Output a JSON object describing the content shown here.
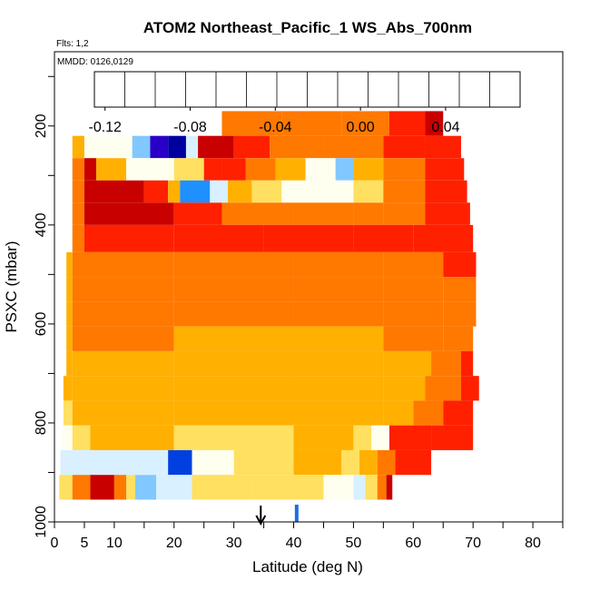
{
  "chart_data": {
    "type": "heatmap",
    "title": "ATOM2 Northeast_Pacific_1 WS_Abs_700nm",
    "flights_label": "Flts: 1,2",
    "date_label": "MMDD: 0126,0129",
    "xlabel": "Latitude (deg N)",
    "ylabel": "PSXC (mbar)",
    "xlim": [
      0,
      85
    ],
    "ylim": [
      1000,
      50
    ],
    "x_ticks": [
      "0",
      "5",
      "10",
      "20",
      "30",
      "40",
      "50",
      "60",
      "70",
      "80"
    ],
    "x_tick_values": [
      0,
      5,
      10,
      20,
      30,
      40,
      50,
      60,
      70,
      80
    ],
    "y_ticks": [
      "200",
      "400",
      "600",
      "800",
      "1000"
    ],
    "y_tick_values": [
      200,
      400,
      600,
      800,
      1000
    ],
    "colorbar": {
      "range": [
        -0.125,
        0.075
      ],
      "ticks": [
        "-0.12",
        "-0.08",
        "-0.04",
        "0.00",
        "0.04"
      ],
      "tick_values": [
        -0.12,
        -0.08,
        -0.04,
        0.0,
        0.04
      ],
      "colors": [
        "#8b20e0",
        "#2a00c8",
        "#0000a0",
        "#0040e0",
        "#1e90ff",
        "#80c8ff",
        "#d8f0ff",
        "#fffff0",
        "#ffe060",
        "#ffb000",
        "#ff7800",
        "#ff2000",
        "#c80000",
        "#800000"
      ]
    },
    "rows": [
      {
        "p_top": 170,
        "p_bot": 220,
        "x_start": 28,
        "x_end": 65,
        "segments": [
          [
            28,
            0.018
          ],
          [
            38,
            0.022
          ],
          [
            48,
            0.028
          ],
          [
            56,
            0.036
          ],
          [
            62,
            0.05
          ]
        ]
      },
      {
        "p_top": 220,
        "p_bot": 265,
        "x_start": 3,
        "x_end": 68,
        "segments": [
          [
            3,
            0.012
          ],
          [
            5,
            -0.018
          ],
          [
            13,
            -0.04
          ],
          [
            16,
            -0.11
          ],
          [
            19,
            -0.09
          ],
          [
            22,
            -0.03
          ],
          [
            24,
            0.06
          ],
          [
            30,
            0.04
          ],
          [
            36,
            0.025
          ],
          [
            45,
            0.03
          ],
          [
            55,
            0.035
          ],
          [
            62,
            0.045
          ]
        ]
      },
      {
        "p_top": 265,
        "p_bot": 310,
        "x_start": 3,
        "x_end": 68.5,
        "segments": [
          [
            3,
            0.03
          ],
          [
            5,
            0.05
          ],
          [
            7,
            0.015
          ],
          [
            12,
            -0.02
          ],
          [
            20,
            0.0
          ],
          [
            25,
            0.035
          ],
          [
            28,
            0.045
          ],
          [
            32,
            0.03
          ],
          [
            37,
            0.005
          ],
          [
            42,
            -0.015
          ],
          [
            47,
            -0.05
          ],
          [
            50,
            0.012
          ],
          [
            55,
            0.03
          ],
          [
            62,
            0.035
          ]
        ]
      },
      {
        "p_top": 310,
        "p_bot": 355,
        "x_start": 3,
        "x_end": 69,
        "segments": [
          [
            3,
            0.028
          ],
          [
            5,
            0.055
          ],
          [
            15,
            0.04
          ],
          [
            19,
            0.005
          ],
          [
            21,
            -0.065
          ],
          [
            26,
            -0.03
          ],
          [
            29,
            0.01
          ],
          [
            33,
            0.0
          ],
          [
            38,
            -0.02
          ],
          [
            50,
            -0.01
          ],
          [
            55,
            0.02
          ],
          [
            62,
            0.035
          ]
        ]
      },
      {
        "p_top": 355,
        "p_bot": 400,
        "x_start": 3,
        "x_end": 69.5,
        "segments": [
          [
            3,
            0.028
          ],
          [
            5,
            0.055
          ],
          [
            20,
            0.04
          ],
          [
            28,
            0.03
          ],
          [
            40,
            0.027
          ],
          [
            50,
            0.026
          ],
          [
            55,
            0.03
          ],
          [
            62,
            0.035
          ]
        ]
      },
      {
        "p_top": 400,
        "p_bot": 455,
        "x_start": 3,
        "x_end": 70,
        "segments": [
          [
            3,
            0.025
          ],
          [
            5,
            0.045
          ],
          [
            20,
            0.04
          ],
          [
            35,
            0.035
          ],
          [
            50,
            0.036
          ],
          [
            60,
            0.038
          ]
        ]
      },
      {
        "p_top": 455,
        "p_bot": 505,
        "x_start": 2,
        "x_end": 70.5,
        "segments": [
          [
            2,
            0.012
          ],
          [
            3,
            0.03
          ],
          [
            20,
            0.032
          ],
          [
            40,
            0.03
          ],
          [
            55,
            0.032
          ],
          [
            65,
            0.035
          ]
        ]
      },
      {
        "p_top": 505,
        "p_bot": 555,
        "x_start": 2,
        "x_end": 70.5,
        "segments": [
          [
            2,
            0.015
          ],
          [
            3,
            0.028
          ],
          [
            20,
            0.025
          ],
          [
            40,
            0.024
          ],
          [
            55,
            0.027
          ],
          [
            65,
            0.03
          ]
        ]
      },
      {
        "p_top": 555,
        "p_bot": 605,
        "x_start": 2,
        "x_end": 70.5,
        "segments": [
          [
            2,
            0.012
          ],
          [
            3,
            0.022
          ],
          [
            20,
            0.018
          ],
          [
            40,
            0.02
          ],
          [
            55,
            0.024
          ],
          [
            65,
            0.03
          ]
        ]
      },
      {
        "p_top": 605,
        "p_bot": 655,
        "x_start": 2,
        "x_end": 70,
        "segments": [
          [
            2,
            0.012
          ],
          [
            3,
            0.02
          ],
          [
            20,
            0.015
          ],
          [
            40,
            0.016
          ],
          [
            55,
            0.02
          ],
          [
            65,
            0.03
          ]
        ]
      },
      {
        "p_top": 655,
        "p_bot": 705,
        "x_start": 2,
        "x_end": 70,
        "segments": [
          [
            2,
            0.008
          ],
          [
            3,
            0.014
          ],
          [
            20,
            0.012
          ],
          [
            40,
            0.013
          ],
          [
            55,
            0.017
          ],
          [
            63,
            0.025
          ],
          [
            68,
            0.035
          ]
        ]
      },
      {
        "p_top": 705,
        "p_bot": 755,
        "x_start": 1.5,
        "x_end": 71,
        "segments": [
          [
            1.5,
            0.006
          ],
          [
            3,
            0.01
          ],
          [
            20,
            0.008
          ],
          [
            40,
            0.009
          ],
          [
            55,
            0.014
          ],
          [
            62,
            0.025
          ],
          [
            68,
            0.045
          ]
        ]
      },
      {
        "p_top": 755,
        "p_bot": 805,
        "x_start": 1.5,
        "x_end": 70,
        "segments": [
          [
            1.5,
            0.003
          ],
          [
            3,
            0.007
          ],
          [
            20,
            0.005
          ],
          [
            40,
            0.006
          ],
          [
            55,
            0.01
          ],
          [
            60,
            0.025
          ],
          [
            65,
            0.038
          ]
        ]
      },
      {
        "p_top": 805,
        "p_bot": 855,
        "x_start": 1.2,
        "x_end": 70,
        "segments": [
          [
            1.2,
            -0.02
          ],
          [
            3,
            0.0
          ],
          [
            6,
            0.004
          ],
          [
            20,
            0.003
          ],
          [
            40,
            0.004
          ],
          [
            50,
            0.0
          ],
          [
            53,
            -0.02
          ],
          [
            56,
            0.035
          ],
          [
            63,
            0.045
          ]
        ]
      },
      {
        "p_top": 855,
        "p_bot": 905,
        "x_start": 1,
        "x_end": 63,
        "segments": [
          [
            1,
            -0.035
          ],
          [
            5,
            -0.03
          ],
          [
            15,
            -0.028
          ],
          [
            19,
            -0.07
          ],
          [
            23,
            -0.02
          ],
          [
            30,
            0.003
          ],
          [
            40,
            0.004
          ],
          [
            48,
            0.0
          ],
          [
            51,
            0.012
          ],
          [
            54,
            0.025
          ],
          [
            57,
            0.035
          ]
        ]
      },
      {
        "p_top": 905,
        "p_bot": 955,
        "x_start": 0.8,
        "x_end": 56.5,
        "segments": [
          [
            0.8,
            0.0
          ],
          [
            3,
            0.03
          ],
          [
            6,
            0.06
          ],
          [
            10,
            0.02
          ],
          [
            12,
            -0.01
          ],
          [
            13.5,
            -0.04
          ],
          [
            17,
            -0.035
          ],
          [
            23,
            -0.01
          ],
          [
            33,
            -0.01
          ],
          [
            45,
            -0.015
          ],
          [
            50,
            -0.03
          ],
          [
            52,
            -0.01
          ],
          [
            54,
            0.02
          ],
          [
            55.5,
            0.05
          ]
        ]
      }
    ],
    "markers": [
      {
        "x": 34.5,
        "label": "black-arrow"
      },
      {
        "x": 40.5,
        "label": "blue-bar"
      }
    ]
  }
}
